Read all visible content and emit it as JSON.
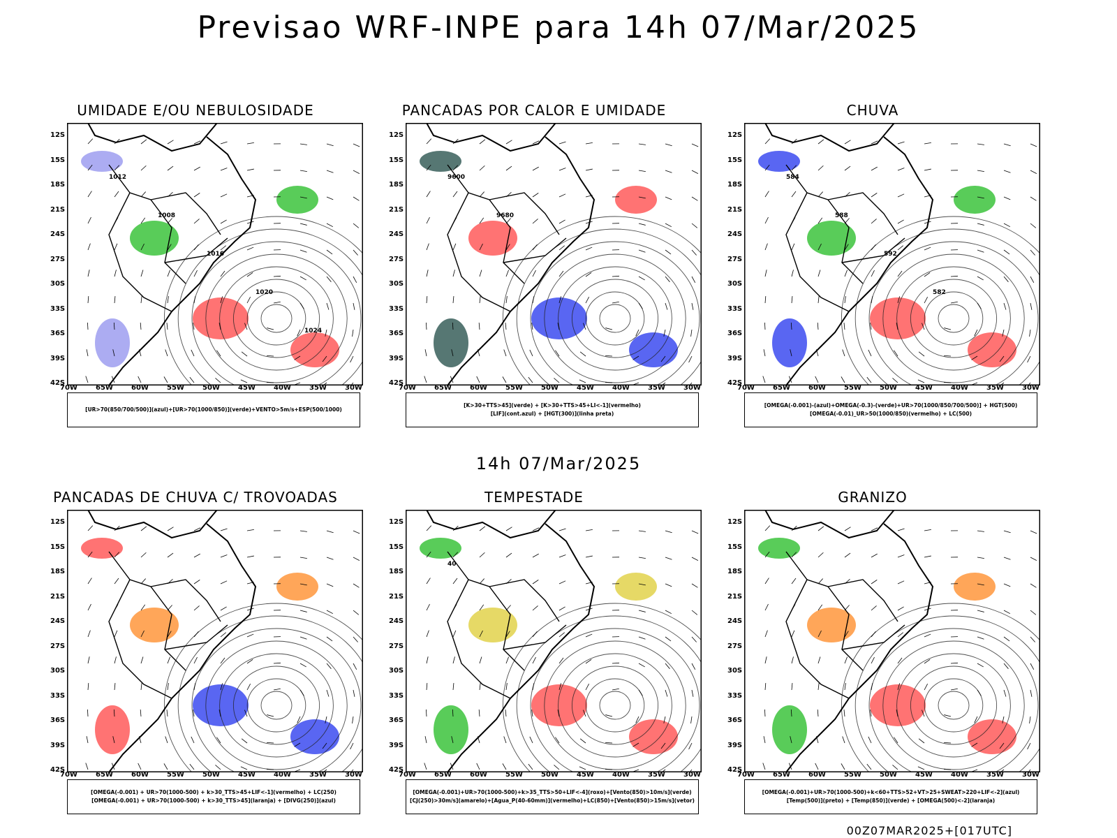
{
  "title": "Previsao WRF-INPE  para 14h 07/Mar/2025",
  "mid_title": "14h 07/Mar/2025",
  "footer": "00Z07MAR2025+[017UTC]",
  "lat_ticks": [
    "12S",
    "15S",
    "18S",
    "21S",
    "24S",
    "27S",
    "30S",
    "33S",
    "36S",
    "39S",
    "42S"
  ],
  "lon_ticks": [
    "70W",
    "65W",
    "60W",
    "55W",
    "50W",
    "45W",
    "40W",
    "35W",
    "30W"
  ],
  "panels": [
    {
      "title": "UMIDADE E/OU NEBULOSIDADE",
      "legend": [
        "[UR>70(850/700/500)](azul)+[UR>70(1000/850)](verde)+VENTO>5m/s+ESP(500/1000)"
      ],
      "colors": {
        "a": "#9090ee",
        "b": "#22bb22",
        "c": "#ff4444"
      },
      "isobars": [
        "1012",
        "1008",
        "1016",
        "1020",
        "1024"
      ]
    },
    {
      "title": "PANCADAS POR CALOR E UMIDADE",
      "legend": [
        "[K>30+TTS>45](verde) + [K>30+TTS>45+LI<-1](vermelho)",
        "[LIF](cont.azul) + [HGT(300)](linha preta)"
      ],
      "colors": {
        "a": "#1e4a44",
        "b": "#ff4444",
        "c": "#2233ee"
      },
      "isobars": [
        "9600",
        "9680"
      ]
    },
    {
      "title": "CHUVA",
      "legend": [
        "[OMEGA(-0.001)-(azul)+OMEGA(-0.3)-(verde)+UR>70(1000/850/700/500)] + HGT(500)",
        "[OMEGA(-0.01)_UR>50(1000/850)(vermelho) + LC(500)"
      ],
      "colors": {
        "a": "#2233ee",
        "b": "#22bb22",
        "c": "#ff4444"
      },
      "isobars": [
        "584",
        "588",
        "592",
        "582"
      ]
    },
    {
      "title": "PANCADAS DE CHUVA C/ TROVOADAS",
      "legend": [
        "[OMEGA(-0.001) + UR>70(1000-500) + k>30_TTS>45+LIF<-1](vermelho) + LC(250)",
        "[OMEGA(-0.001) + UR>70(1000-500) + k>30_TTS>45](laranja) + [DIVG(250)](azul)"
      ],
      "colors": {
        "a": "#ff4444",
        "b": "#ff8822",
        "c": "#2233ee"
      },
      "isobars": []
    },
    {
      "title": "TEMPESTADE",
      "legend": [
        "[OMEGA(-0.001)+UR>70(1000-500)+k>35_TTS>50+LIF<-4](roxo)+[Vento(850)>10m/s](verde)",
        "[CJ(250)>30m/s](amarelo)+[Agua_P(40-60mm)](vermelho)+LC(850)+[Vento(850)>15m/s](vetor)"
      ],
      "colors": {
        "a": "#22bb22",
        "b": "#ddcc33",
        "c": "#ff4444"
      },
      "isobars": [
        "40"
      ]
    },
    {
      "title": "GRANIZO",
      "legend": [
        "[OMEGA(-0.001)+UR>70(1000-500)+k<60+TTS>52+VT>25+SWEAT>220+LIF<-2](azul)",
        "[Temp(500)](preto) + [Temp(850)](verde) + [OMEGA(500)<-2](laranja)"
      ],
      "colors": {
        "a": "#22bb22",
        "b": "#ff8822",
        "c": "#ff4444"
      },
      "isobars": []
    }
  ]
}
